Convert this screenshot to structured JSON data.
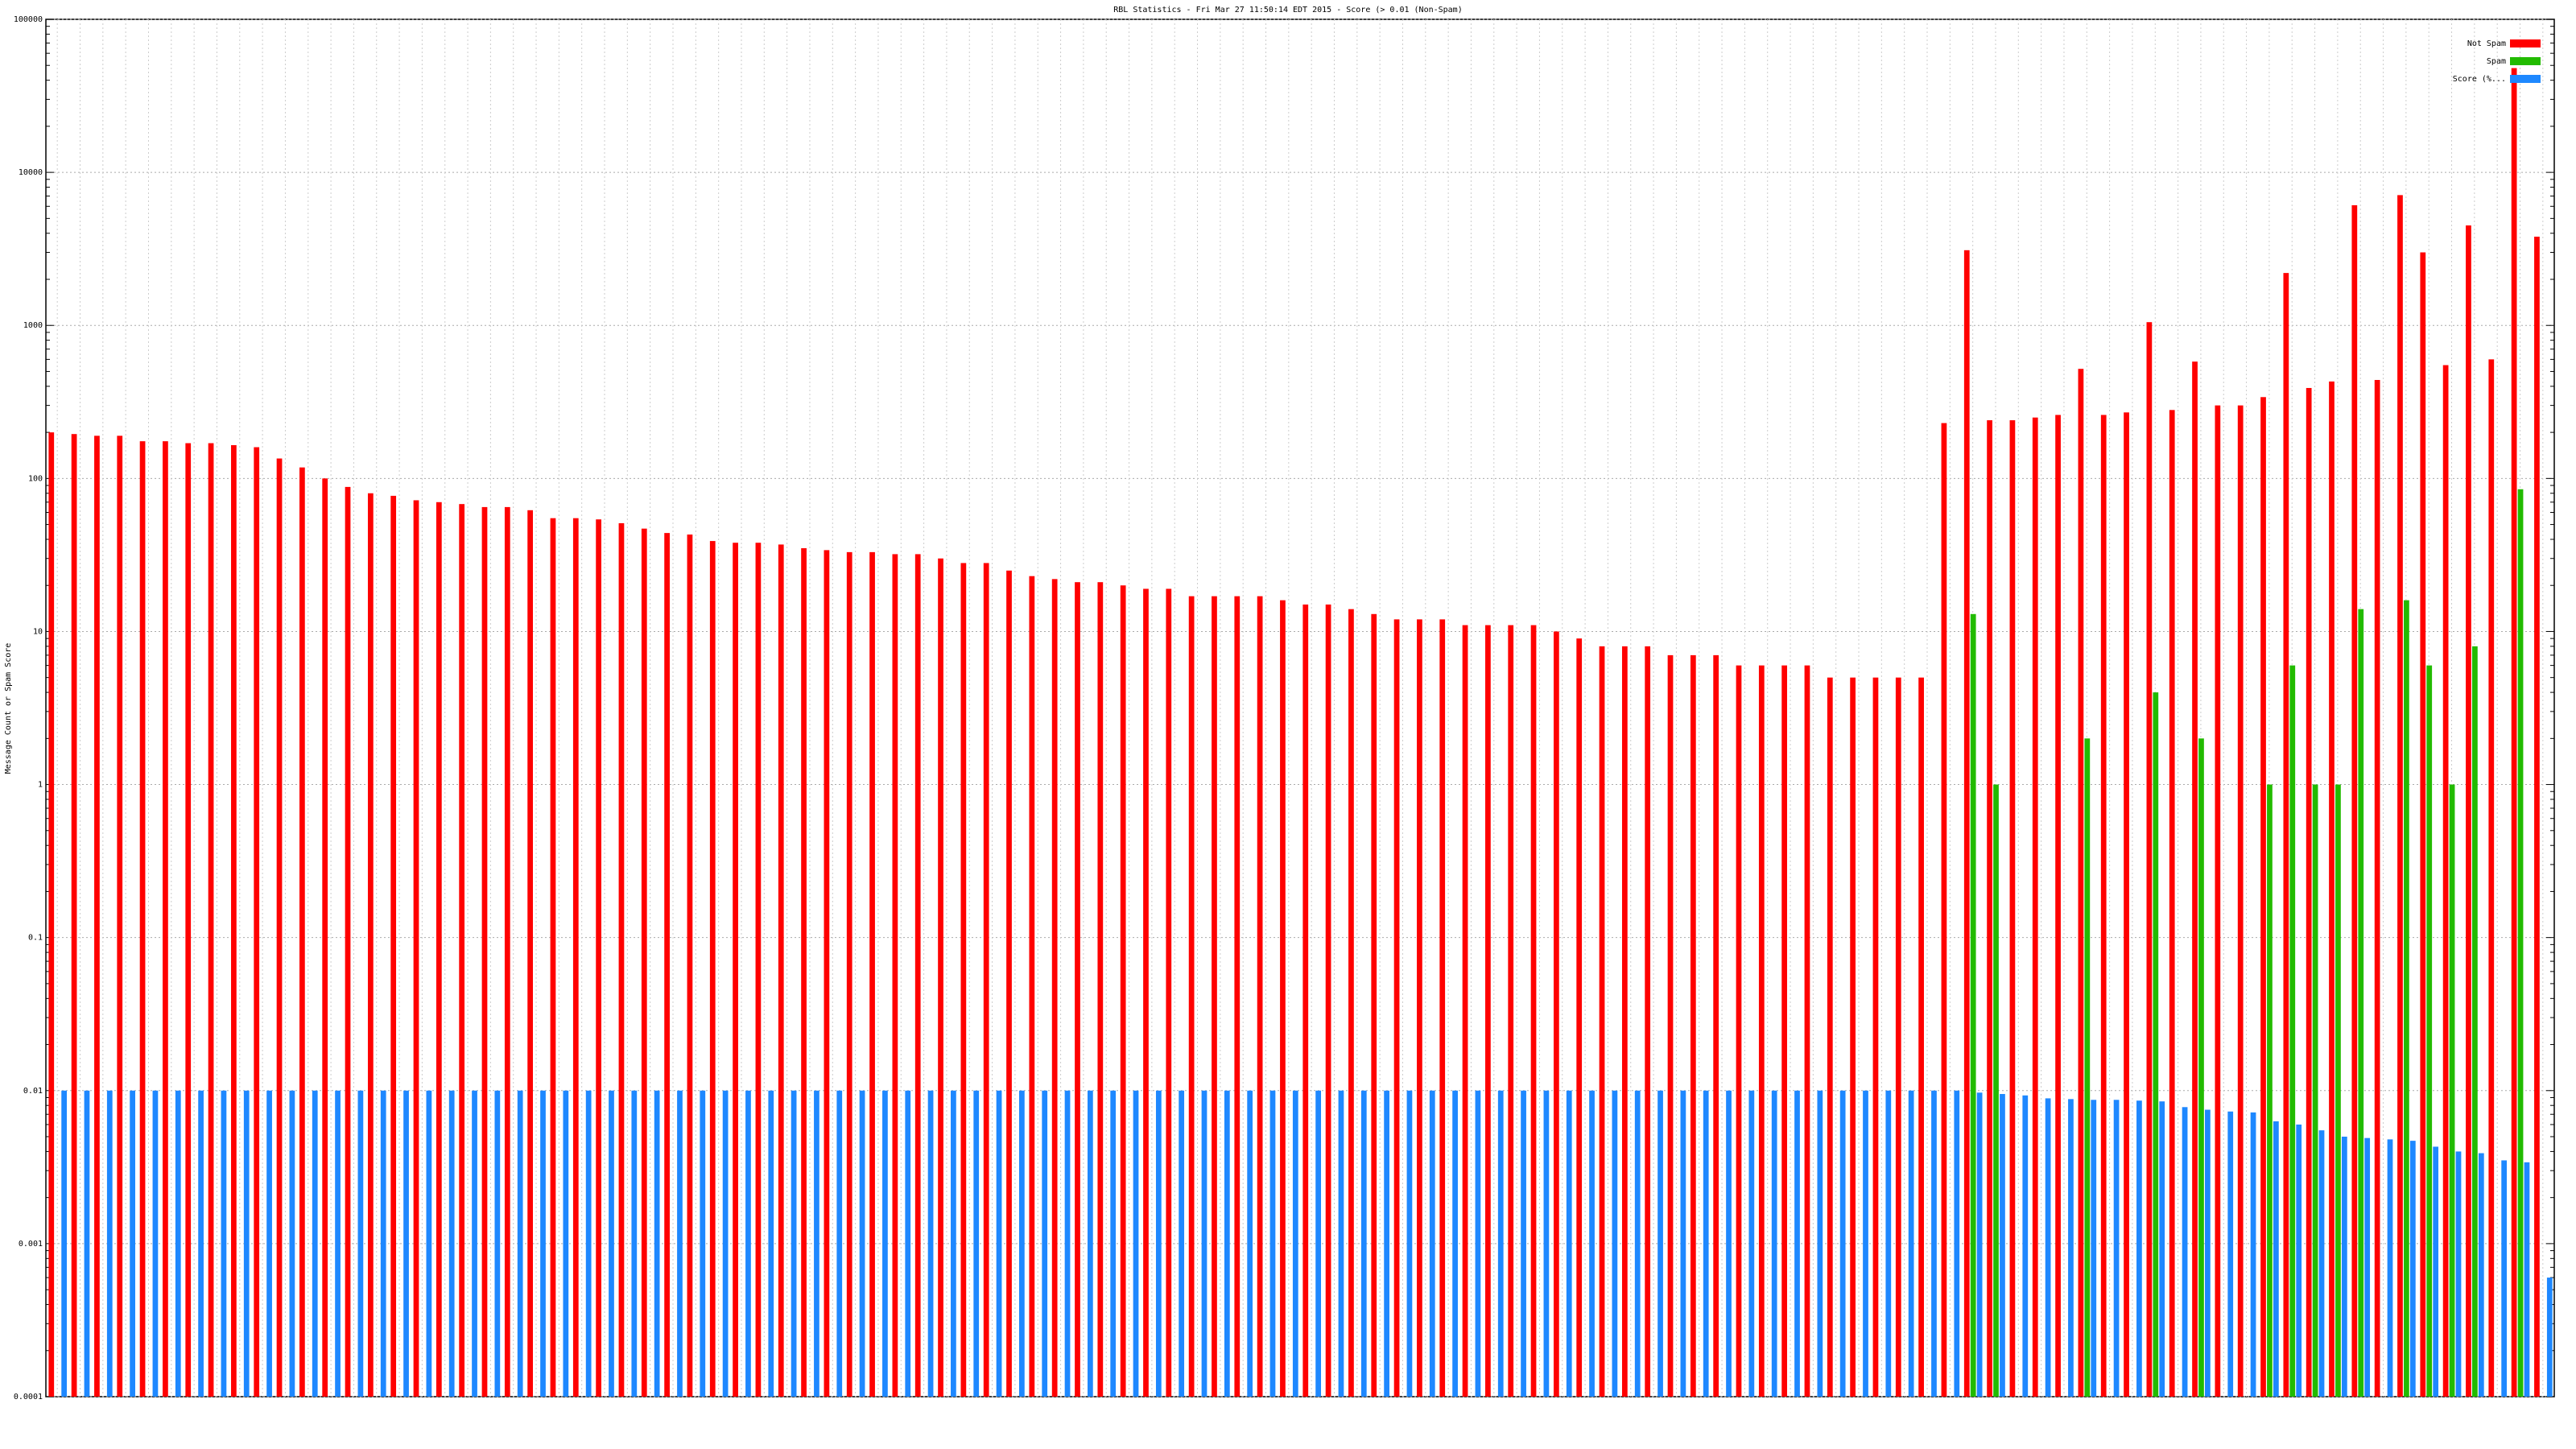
{
  "chart_data": {
    "type": "bar",
    "title": "RBL Statistics - Fri Mar 27 11:50:14 EDT 2015 - Score (> 0.01 (Non-Spam)",
    "ylabel": "Message Count or Spam Score",
    "log_y": true,
    "grid": true,
    "legend": "top-right",
    "ylim": [
      0.0001,
      100000
    ],
    "yticks": [
      0.0001,
      0.001,
      0.01,
      0.1,
      1,
      10,
      100,
      1000,
      10000,
      100000
    ],
    "categories": [
      null,
      null,
      null,
      null,
      null,
      null,
      null,
      null,
      null,
      null,
      null,
      null,
      null,
      null,
      null,
      null,
      null,
      null,
      null,
      null,
      null,
      null,
      null,
      null,
      null,
      null,
      null,
      null,
      null,
      null,
      null,
      null,
      null,
      null,
      null,
      null,
      null,
      null,
      null,
      null,
      null,
      null,
      null,
      null,
      null,
      null,
      null,
      null,
      null,
      null,
      null,
      null,
      null,
      null,
      null,
      null,
      null,
      null,
      null,
      null,
      null,
      null,
      null,
      null,
      null,
      null,
      null,
      null,
      null,
      null,
      null,
      null,
      null,
      null,
      null,
      null,
      null,
      null,
      null,
      null,
      null,
      null,
      null,
      null,
      null,
      null,
      null,
      null,
      null,
      null,
      null,
      null,
      null,
      null,
      null,
      null,
      null,
      null,
      null,
      null,
      null,
      null,
      null,
      null,
      null,
      null,
      null,
      null,
      null,
      null
    ],
    "series": [
      {
        "name": "Not Spam",
        "color": "#ff0000",
        "values": [
          200,
          195,
          190,
          190,
          175,
          175,
          170,
          170,
          165,
          160,
          135,
          118,
          100,
          88,
          80,
          77,
          72,
          70,
          68,
          65,
          65,
          62,
          55,
          55,
          54,
          51,
          47,
          44,
          43,
          39,
          38,
          38,
          37,
          35,
          34,
          33,
          33,
          32,
          32,
          30,
          28,
          28,
          25,
          23,
          22,
          21,
          21,
          20,
          19,
          19,
          17,
          17,
          17,
          17,
          16,
          15,
          15,
          14,
          13,
          12,
          12,
          12,
          11,
          11,
          11,
          11,
          10,
          9,
          8,
          8,
          8,
          7,
          7,
          7,
          6,
          6,
          6,
          6,
          5,
          5,
          5,
          5,
          5,
          230,
          3100,
          240,
          240,
          250,
          260,
          520,
          260,
          270,
          1050,
          280,
          580,
          300,
          300,
          340,
          2200,
          390,
          430,
          6100,
          440,
          7100,
          3000,
          550,
          4500,
          600,
          48000,
          3800
        ]
      },
      {
        "name": "Spam",
        "color": "#22bb00",
        "values": [
          null,
          null,
          null,
          null,
          null,
          null,
          null,
          null,
          null,
          null,
          null,
          null,
          null,
          null,
          null,
          null,
          null,
          null,
          null,
          null,
          null,
          null,
          null,
          null,
          null,
          null,
          null,
          null,
          null,
          null,
          null,
          null,
          null,
          null,
          null,
          null,
          null,
          null,
          null,
          null,
          null,
          null,
          null,
          null,
          null,
          null,
          null,
          null,
          null,
          null,
          null,
          null,
          null,
          null,
          null,
          null,
          null,
          null,
          null,
          null,
          null,
          null,
          null,
          null,
          null,
          null,
          null,
          null,
          null,
          null,
          null,
          null,
          null,
          null,
          null,
          null,
          null,
          null,
          null,
          null,
          null,
          null,
          null,
          null,
          13,
          1,
          null,
          null,
          null,
          2,
          null,
          null,
          4,
          null,
          2,
          null,
          null,
          1,
          6,
          1,
          1,
          14,
          null,
          16,
          6,
          1,
          8,
          null,
          85,
          null
        ]
      },
      {
        "name": "Score (%...",
        "color": "#1e88ff",
        "values": [
          0.01,
          0.01,
          0.01,
          0.01,
          0.01,
          0.01,
          0.01,
          0.01,
          0.01,
          0.01,
          0.01,
          0.01,
          0.01,
          0.01,
          0.01,
          0.01,
          0.01,
          0.01,
          0.01,
          0.01,
          0.01,
          0.01,
          0.01,
          0.01,
          0.01,
          0.01,
          0.01,
          0.01,
          0.01,
          0.01,
          0.01,
          0.01,
          0.01,
          0.01,
          0.01,
          0.01,
          0.01,
          0.01,
          0.01,
          0.01,
          0.01,
          0.01,
          0.01,
          0.01,
          0.01,
          0.01,
          0.01,
          0.01,
          0.01,
          0.01,
          0.01,
          0.01,
          0.01,
          0.01,
          0.01,
          0.01,
          0.01,
          0.01,
          0.01,
          0.01,
          0.01,
          0.01,
          0.01,
          0.01,
          0.01,
          0.01,
          0.01,
          0.01,
          0.01,
          0.01,
          0.01,
          0.01,
          0.01,
          0.01,
          0.01,
          0.01,
          0.01,
          0.01,
          0.01,
          0.01,
          0.01,
          0.01,
          0.01,
          0.01,
          0.0097,
          0.0095,
          0.0093,
          0.0089,
          0.0088,
          0.0087,
          0.0087,
          0.0086,
          0.0085,
          0.0078,
          0.0075,
          0.0073,
          0.0072,
          0.0063,
          0.006,
          0.0055,
          0.005,
          0.0049,
          0.0048,
          0.0047,
          0.0043,
          0.004,
          0.0039,
          0.0035,
          0.0034,
          0.0006
        ]
      }
    ]
  }
}
